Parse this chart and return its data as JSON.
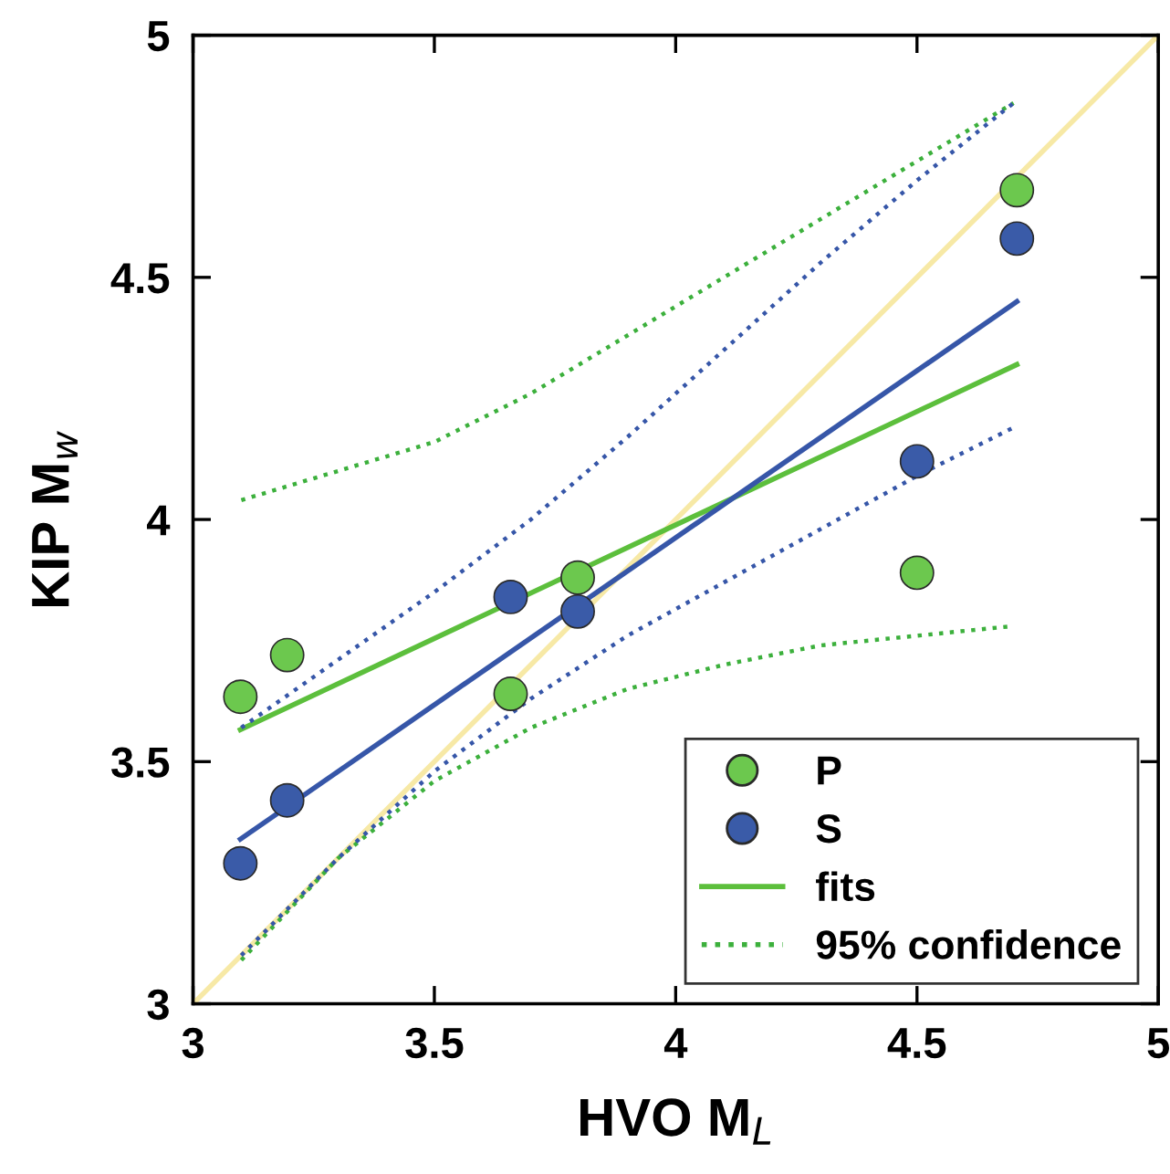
{
  "chart_data": {
    "type": "scatter",
    "xlabel": "HVO M$_{L}$",
    "ylabel": "KIP M$_{w}$",
    "xlim": [
      3,
      5
    ],
    "ylim": [
      3,
      5
    ],
    "xticks": [
      3,
      3.5,
      4,
      4.5,
      5
    ],
    "yticks": [
      3,
      3.5,
      4,
      4.5,
      5
    ],
    "grid": false,
    "legend": "bottom right",
    "series": [
      {
        "type": "line",
        "color": "#f7e9a6",
        "line_style": "solid",
        "x": [
          3,
          5
        ],
        "values": [
          3,
          5
        ]
      },
      {
        "type": "line",
        "name": "fits",
        "color": "#5cbf3c",
        "line_style": "solid",
        "x": [
          3.098,
          4.707
        ],
        "values": [
          3.566,
          4.32
        ]
      },
      {
        "type": "line",
        "color": "#3656a8",
        "line_style": "solid",
        "x": [
          3.098,
          4.707
        ],
        "values": [
          3.34,
          4.45
        ]
      },
      {
        "type": "line",
        "name": "95% confidence",
        "color": "#3cb03c",
        "line_style": "dotted",
        "x": [
          3.1,
          3.3,
          3.5,
          3.7,
          3.9,
          4.1,
          4.3,
          4.5,
          4.7
        ],
        "values": [
          4.04,
          4.1,
          4.16,
          4.26,
          4.38,
          4.5,
          4.62,
          4.74,
          4.86
        ]
      },
      {
        "type": "line",
        "color": "#3cb03c",
        "line_style": "dotted",
        "x": [
          3.1,
          3.3,
          3.5,
          3.7,
          3.9,
          4.1,
          4.3,
          4.5,
          4.7
        ],
        "values": [
          3.09,
          3.3,
          3.46,
          3.57,
          3.65,
          3.7,
          3.74,
          3.76,
          3.78
        ]
      },
      {
        "type": "line",
        "color": "#3656a8",
        "line_style": "dotted",
        "x": [
          3.1,
          3.3,
          3.5,
          3.7,
          3.9,
          4.1,
          4.3,
          4.5,
          4.7
        ],
        "values": [
          3.57,
          3.71,
          3.85,
          4.0,
          4.17,
          4.35,
          4.53,
          4.7,
          4.86
        ]
      },
      {
        "type": "line",
        "color": "#3656a8",
        "line_style": "dotted",
        "x": [
          3.1,
          3.3,
          3.5,
          3.7,
          3.9,
          4.1,
          4.3,
          4.5,
          4.7
        ],
        "values": [
          3.1,
          3.3,
          3.48,
          3.63,
          3.76,
          3.87,
          3.98,
          4.09,
          4.19
        ]
      },
      {
        "name": "P",
        "marker": "circle",
        "color": "#6cc84e",
        "x": [
          3.098,
          3.195,
          3.658,
          3.797,
          4.5,
          4.707
        ],
        "values": [
          3.634,
          3.72,
          3.64,
          3.88,
          3.89,
          4.68
        ]
      },
      {
        "name": "S",
        "marker": "circle",
        "color": "#3a5ba8",
        "x": [
          3.098,
          3.195,
          3.658,
          3.797,
          4.5,
          4.707
        ],
        "values": [
          3.29,
          3.42,
          3.84,
          3.81,
          4.12,
          4.58
        ]
      }
    ]
  }
}
